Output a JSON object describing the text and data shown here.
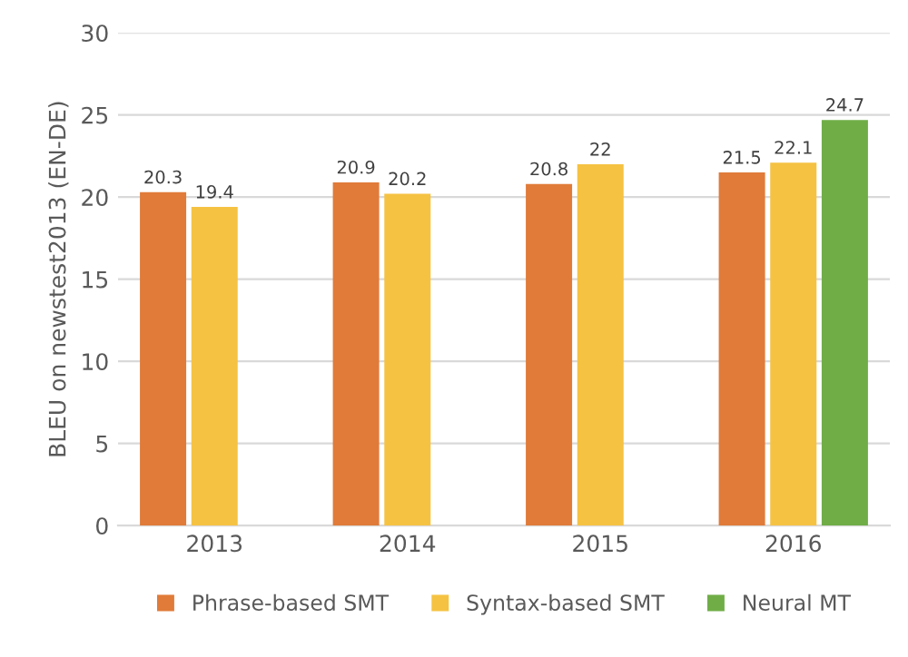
{
  "chart_data": {
    "type": "bar",
    "ylabel": "BLEU on newstest2013 (EN-DE)",
    "categories": [
      "2013",
      "2014",
      "2015",
      "2016"
    ],
    "series": [
      {
        "name": "Phrase-based SMT",
        "color": "#e07b39",
        "values": [
          20.3,
          20.9,
          20.8,
          21.5
        ]
      },
      {
        "name": "Syntax-based SMT",
        "color": "#f5c242",
        "values": [
          19.4,
          20.2,
          22,
          22.1
        ]
      },
      {
        "name": "Neural MT",
        "color": "#70ad47",
        "values": [
          null,
          null,
          null,
          24.7
        ]
      }
    ],
    "ylim": [
      0,
      30
    ],
    "yticks": [
      0,
      5,
      10,
      15,
      20,
      25,
      30
    ],
    "grid": "y",
    "legend": "bottom",
    "data_labels": true
  }
}
